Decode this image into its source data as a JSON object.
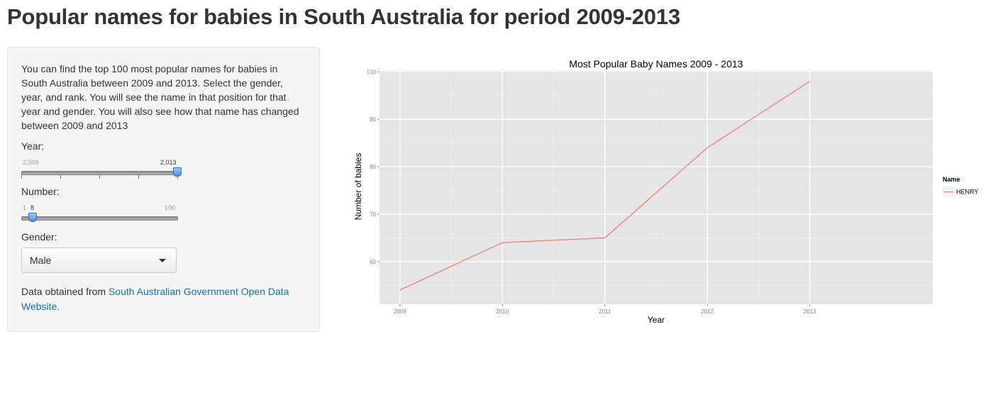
{
  "page": {
    "title": "Popular names for babies in South Australia for period 2009-2013"
  },
  "sidebar": {
    "intro": "You can find the top 100 most popular names for babies in South Australia between 2009 and 2013. Select the gender, year, and rank. You will see the name in that position for that year and gender. You will also see how that name has changed between 2009 and 2013",
    "year_label": "Year:",
    "year_slider": {
      "min_label": "2,009",
      "value_label": "2,013",
      "min": 2009,
      "max": 2013,
      "value": 2013
    },
    "number_label": "Number:",
    "number_slider": {
      "min_label": "1",
      "value_label": "8",
      "max_label": "100",
      "min": 1,
      "max": 100,
      "value": 8
    },
    "gender_label": "Gender:",
    "gender_value": "Male",
    "credits_prefix": "Data obtained from ",
    "credits_link": "South Australian Government Open Data Website."
  },
  "chart_data": {
    "type": "line",
    "title": "Most Popular Baby Names 2009 - 2013",
    "xlabel": "Year",
    "ylabel": "Number of babies",
    "x": [
      2009,
      2010,
      2011,
      2012,
      2013
    ],
    "x_tick_labels": [
      "2009",
      "2010",
      "2011",
      "2012",
      "2013"
    ],
    "y_ticks": [
      60,
      70,
      80,
      90,
      100
    ],
    "y_tick_labels": [
      "60",
      "70",
      "80",
      "90",
      "100"
    ],
    "xlim": [
      2008.8,
      2014.2
    ],
    "ylim": [
      51,
      100.2
    ],
    "grid": true,
    "legend_position": "right",
    "legend_title": "Name",
    "series": [
      {
        "name": "HENRY",
        "color": "#f8766d",
        "values": [
          54,
          64,
          65,
          84,
          98
        ]
      }
    ],
    "panel_color": "#e5e5e5",
    "grid_color": "#ffffff"
  }
}
